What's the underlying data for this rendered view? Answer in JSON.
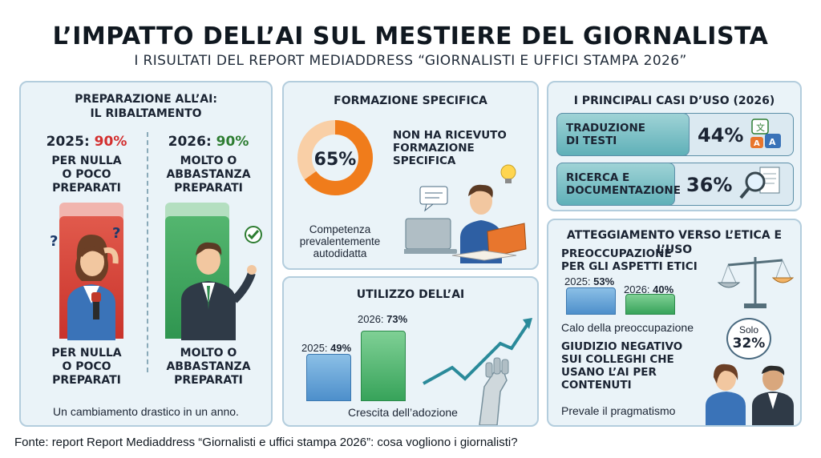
{
  "header": {
    "title": "L’IMPATTO DELL’AI SUL MESTIERE DEL GIORNALISTA",
    "subtitle": "I RISULTATI DEL REPORT MEDIADDRESS “GIORNALISTI E UFFICI STAMPA 2026”"
  },
  "prep": {
    "title_line1": "PREPARAZIONE ALL’AI:",
    "title_line2": "IL RIBALTAMENTO",
    "left_year": "2025:",
    "left_pct": "90%",
    "left_desc1": "PER NULLA",
    "left_desc2": "O POCO",
    "left_desc3": "PREPARATI",
    "right_year": "2026:",
    "right_pct": "90%",
    "right_desc1": "MOLTO O",
    "right_desc2": "ABBASTANZA",
    "right_desc3": "PREPARATI",
    "bottom_left1": "PER NULLA",
    "bottom_left2": "O POCO",
    "bottom_left3": "PREPARATI",
    "bottom_right1": "MOLTO O",
    "bottom_right2": "ABBASTANZA",
    "bottom_right3": "PREPARATI",
    "caption": "Un cambiamento drastico in un anno.",
    "left_value": 90,
    "right_value": 90
  },
  "training": {
    "title": "FORMAZIONE SPECIFICA",
    "pct_label": "65%",
    "pct_value": 65,
    "desc1": "NON HA RICEVUTO",
    "desc2": "FORMAZIONE",
    "desc3": "SPECIFICA",
    "note1": "Competenza",
    "note2": "prevalentemente",
    "note3": "autodidatta",
    "ring_color": "#f07c1b"
  },
  "usage": {
    "title": "UTILIZZO DELL’AI",
    "y2025_label": "2025:",
    "y2025_value_label": "49%",
    "y2026_label": "2026:",
    "y2026_value_label": "73%",
    "values": [
      49,
      73
    ],
    "caption": "Crescita dell’adozione"
  },
  "usecases": {
    "title": "I PRINCIPALI CASI D’USO (2026)",
    "items": [
      {
        "label1": "TRADUZIONE",
        "label2": "DI TESTI",
        "pct": "44%",
        "value": 44
      },
      {
        "label1": "RICERCA E",
        "label2": "DOCUMENTAZIONE",
        "pct": "36%",
        "value": 36
      }
    ]
  },
  "ethics": {
    "title": "ATTEGGIAMENTO VERSO L’ETICA E L’USO",
    "concern1": "PREOCCUPAZIONE",
    "concern2": "PER GLI ASPETTI ETICI",
    "y2025_label": "2025:",
    "y2025_value_label": "53%",
    "y2026_label": "2026:",
    "y2026_value_label": "40%",
    "values": [
      53,
      40
    ],
    "concern_caption": "Calo della preoccupazione",
    "judg1": "GIUDIZIO NEGATIVO",
    "judg2": "SUI COLLEGHI CHE",
    "judg3": "USANO L’AI PER",
    "judg4": "CONTENUTI",
    "bubble_top": "Solo",
    "bubble_pct": "32%",
    "caption": "Prevale il pragmatismo"
  },
  "footer": {
    "source": "Fonte: report Report Mediaddress “Giornalisti e uffici stampa 2026”: cosa vogliono i giornalisti?"
  },
  "icons": [
    "question-icon",
    "check-icon",
    "lightbulb-icon",
    "speech-bubble-icon",
    "laptop-icon",
    "book-icon",
    "robot-hand-icon",
    "trend-arrow-icon",
    "translate-icon",
    "magnifier-document-icon",
    "scales-icon"
  ]
}
